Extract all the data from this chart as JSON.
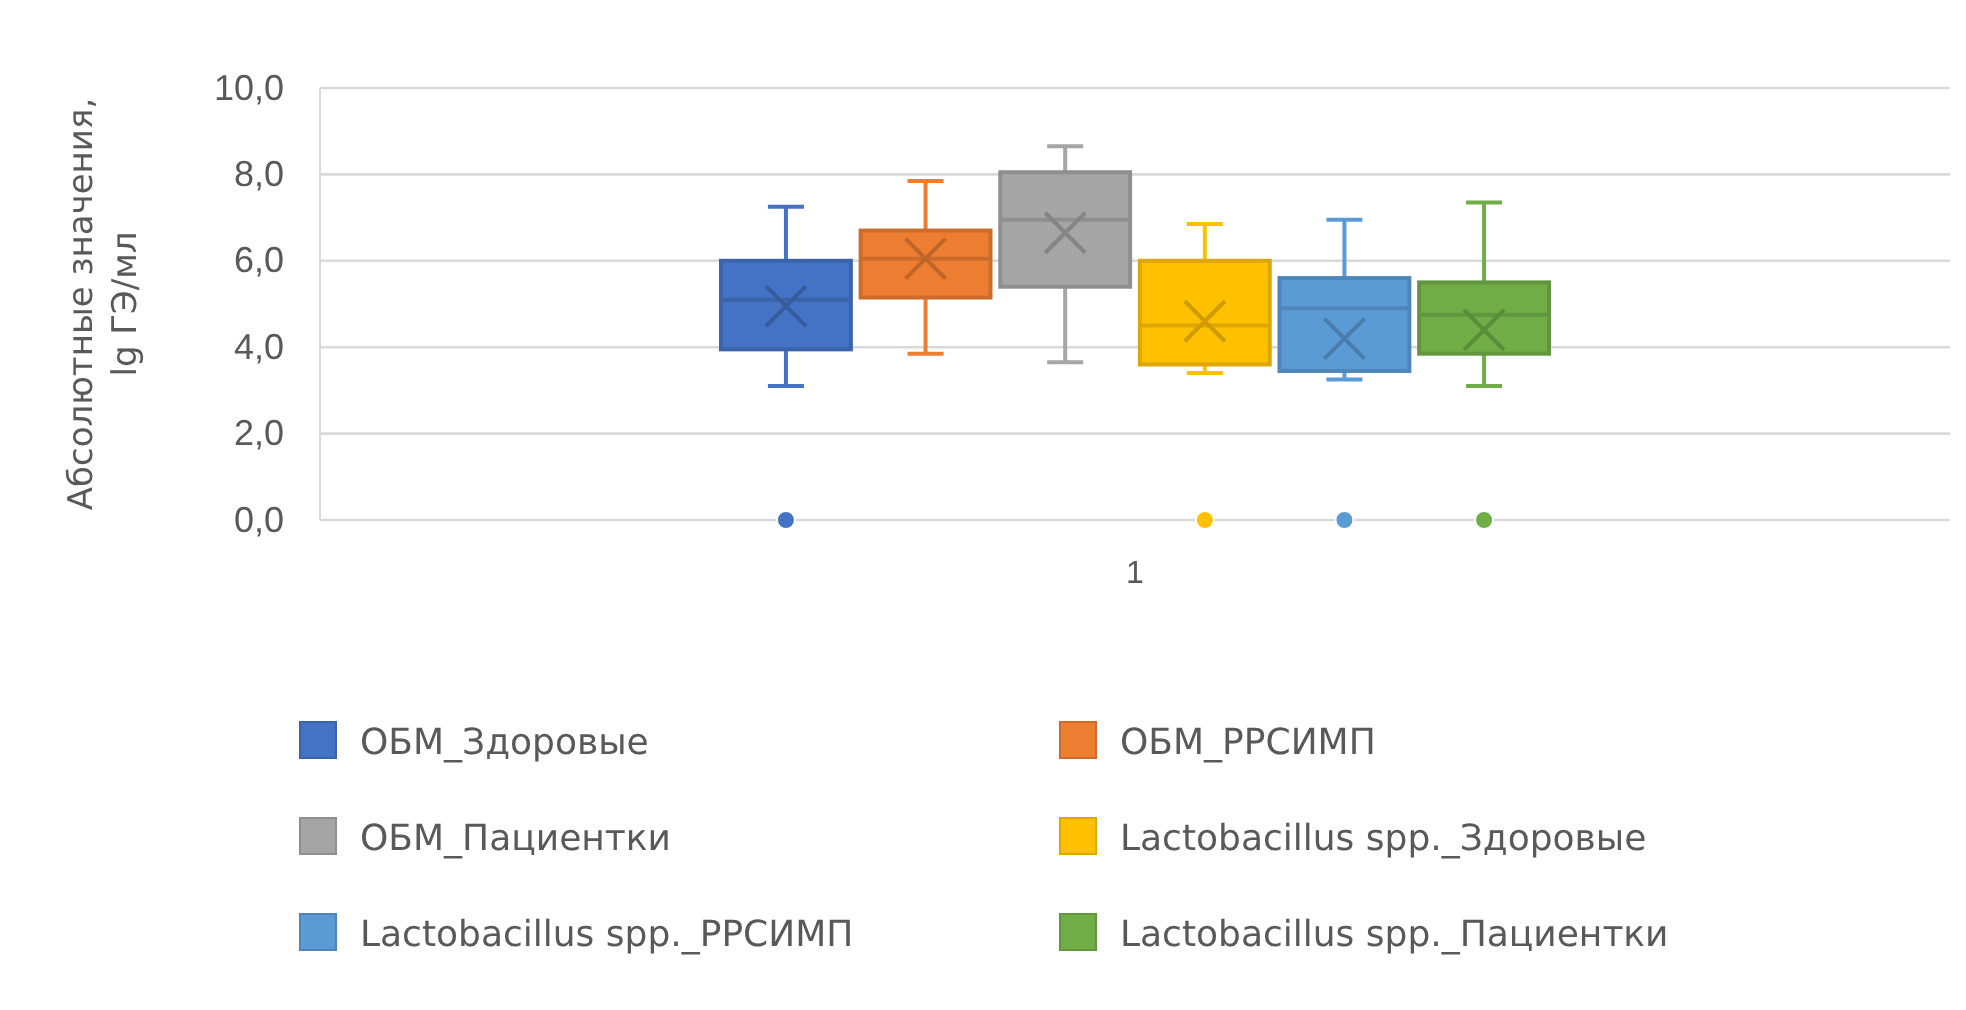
{
  "chart_data": {
    "type": "box",
    "categories": [
      "1"
    ],
    "ylabel": "Абсолютные значения,\nlg ГЭ/мл",
    "ylim": [
      0,
      10
    ],
    "yticks": [
      {
        "value": 0,
        "label": "0,0"
      },
      {
        "value": 2,
        "label": "2,0"
      },
      {
        "value": 4,
        "label": "4,0"
      },
      {
        "value": 6,
        "label": "6,0"
      },
      {
        "value": 8,
        "label": "8,0"
      },
      {
        "value": 10,
        "label": "10,0"
      }
    ],
    "grid": "y",
    "legend": "bottom",
    "marker": "cross",
    "series": [
      {
        "name": "ОБМ_Здоровые",
        "color": "#4472c4",
        "boxes": [
          {
            "low": 3.1,
            "q1": 3.95,
            "median": 5.1,
            "q3": 6.0,
            "high": 7.25,
            "mean": 4.95,
            "outliers": [
              0
            ]
          }
        ]
      },
      {
        "name": "ОБМ_РРСИМП",
        "color": "#ed7d31",
        "boxes": [
          {
            "low": 3.85,
            "q1": 5.15,
            "median": 6.05,
            "q3": 6.7,
            "high": 7.85,
            "mean": 6.05
          }
        ]
      },
      {
        "name": "ОБМ_Пациентки",
        "color": "#a5a5a5",
        "boxes": [
          {
            "low": 3.65,
            "q1": 5.4,
            "median": 6.95,
            "q3": 8.05,
            "high": 8.65,
            "mean": 6.65
          }
        ]
      },
      {
        "name": "Lactobacillus spp._Здоровые",
        "color": "#ffc000",
        "boxes": [
          {
            "low": 3.4,
            "q1": 3.6,
            "median": 4.5,
            "q3": 6.0,
            "high": 6.85,
            "mean": 4.6,
            "outliers": [
              0
            ]
          }
        ]
      },
      {
        "name": "Lactobacillus spp._РРСИМП",
        "color": "#5b9bd5",
        "boxes": [
          {
            "low": 3.25,
            "q1": 3.45,
            "median": 4.9,
            "q3": 5.6,
            "high": 6.95,
            "mean": 4.2,
            "outliers": [
              0
            ]
          }
        ]
      },
      {
        "name": "Lactobacillus spp._Пациентки",
        "color": "#70ad47",
        "boxes": [
          {
            "low": 3.1,
            "q1": 3.85,
            "median": 4.75,
            "q3": 5.5,
            "high": 7.35,
            "mean": 4.4,
            "outliers": [
              0
            ]
          }
        ]
      }
    ]
  }
}
